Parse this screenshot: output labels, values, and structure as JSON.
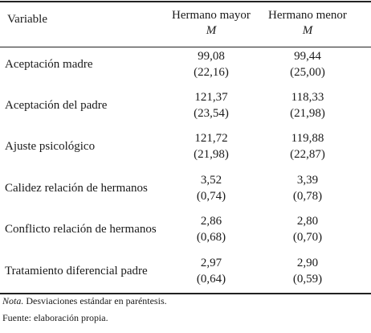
{
  "header": {
    "variable": "Variable",
    "col1_title": "Hermano mayor",
    "col1_sub": "M",
    "col2_title": "Hermano menor",
    "col2_sub": "M"
  },
  "rows": [
    {
      "label": "Aceptación madre",
      "c1_mean": "99,08",
      "c1_sd": "(22,16)",
      "c2_mean": "99,44",
      "c2_sd": "(25,00)"
    },
    {
      "label": "Aceptación del padre",
      "c1_mean": "121,37",
      "c1_sd": "(23,54)",
      "c2_mean": "118,33",
      "c2_sd": "(21,98)"
    },
    {
      "label": "Ajuste psicológico",
      "c1_mean": "121,72",
      "c1_sd": "(21,98)",
      "c2_mean": "119,88",
      "c2_sd": "(22,87)"
    },
    {
      "label": "Calidez relación de hermanos",
      "c1_mean": "3,52",
      "c1_sd": "(0,74)",
      "c2_mean": "3,39",
      "c2_sd": "(0,78)"
    },
    {
      "label": "Conflicto relación de hermanos",
      "c1_mean": "2,86",
      "c1_sd": "(0,68)",
      "c2_mean": "2,80",
      "c2_sd": "(0,70)"
    },
    {
      "label": "Tratamiento diferencial padre",
      "c1_mean": "2,97",
      "c1_sd": "(0,64)",
      "c2_mean": "2,90",
      "c2_sd": "(0,59)"
    }
  ],
  "notes": {
    "nota_label": "Nota.",
    "nota_text": " Desviaciones estándar en paréntesis.",
    "fuente": "Fuente: elaboración propia."
  }
}
